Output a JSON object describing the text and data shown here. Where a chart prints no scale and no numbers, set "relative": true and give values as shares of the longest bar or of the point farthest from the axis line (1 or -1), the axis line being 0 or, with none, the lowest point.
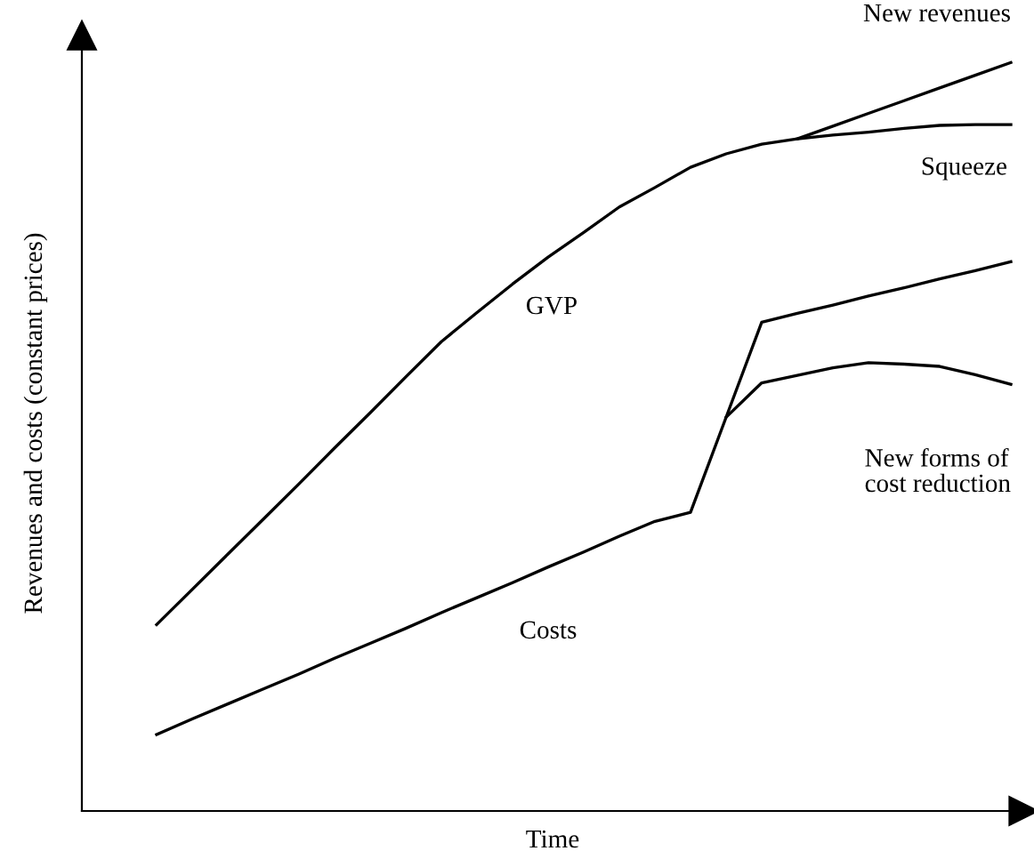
{
  "chart_data": {
    "type": "line",
    "relative": true,
    "xlabel": "Time",
    "ylabel": "Revenues and costs (constant prices)",
    "annotations": [
      "GVP"
    ],
    "categories": [
      null,
      null,
      null,
      null,
      null,
      null,
      null,
      null,
      null,
      null,
      null,
      null,
      null,
      null,
      null,
      null,
      null,
      null,
      null,
      null,
      null,
      null,
      null,
      null,
      null
    ],
    "series": [
      {
        "name": "New revenues",
        "color": "#000000",
        "values": [
          0.249,
          0.296,
          0.343,
          0.39,
          0.437,
          0.485,
          0.532,
          0.58,
          0.627,
          0.666,
          0.704,
          0.74,
          0.773,
          0.807,
          0.833,
          0.86,
          0.878,
          0.891,
          0.898,
          0.915,
          0.932,
          0.949,
          0.966,
          0.983,
          1.0
        ]
      },
      {
        "name": "Squeeze",
        "color": "#000000",
        "values": [
          null,
          null,
          null,
          null,
          null,
          null,
          null,
          null,
          null,
          null,
          null,
          null,
          null,
          null,
          null,
          null,
          null,
          null,
          0.898,
          0.903,
          0.907,
          0.912,
          0.916,
          0.917,
          0.917
        ]
      },
      {
        "name": "Costs",
        "color": "#000000",
        "values": [
          0.102,
          0.123,
          0.143,
          0.163,
          0.183,
          0.204,
          0.224,
          0.244,
          0.265,
          0.285,
          0.305,
          0.326,
          0.346,
          0.367,
          0.387,
          0.399,
          0.526,
          0.653,
          0.665,
          0.676,
          0.688,
          0.699,
          0.711,
          0.722,
          0.734
        ]
      },
      {
        "name": "New forms of cost reduction",
        "color": "#000000",
        "values": [
          null,
          null,
          null,
          null,
          null,
          null,
          null,
          null,
          null,
          null,
          null,
          null,
          null,
          null,
          null,
          null,
          0.526,
          0.572,
          0.582,
          0.592,
          0.599,
          0.597,
          0.594,
          0.583,
          0.57
        ]
      }
    ],
    "marker": "none",
    "line_style": "solid"
  }
}
